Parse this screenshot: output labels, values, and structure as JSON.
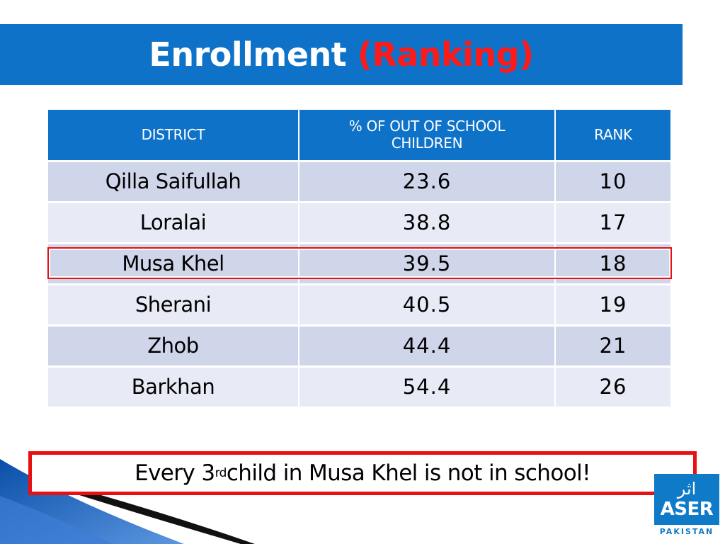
{
  "title": {
    "main": "Enrollment",
    "accent": "(Ranking)"
  },
  "table": {
    "headers": [
      "DISTRICT",
      "% OF OUT OF SCHOOL CHILDREN",
      "RANK"
    ],
    "rows": [
      {
        "district": "Qilla Saifullah",
        "percent": "23.6",
        "rank": "10"
      },
      {
        "district": "Loralai",
        "percent": "38.8",
        "rank": "17"
      },
      {
        "district": "Musa Khel",
        "percent": "39.5",
        "rank": "18"
      },
      {
        "district": "Sherani",
        "percent": "40.5",
        "rank": "19"
      },
      {
        "district": "Zhob",
        "percent": "44.4",
        "rank": "21"
      },
      {
        "district": "Barkhan",
        "percent": "54.4",
        "rank": "26"
      }
    ],
    "highlighted_district": "Musa Khel"
  },
  "callout": {
    "before": "Every 3",
    "sup": "rd",
    "after": " child in Musa Khel is not in school!"
  },
  "logo": {
    "urdu": "اثر",
    "name": "ASER",
    "sub": "PAKISTAN"
  },
  "colors": {
    "header_blue": "#0e72c8",
    "accent_red": "#ff1a1a",
    "row_dark": "#cfd6ea",
    "row_light": "#e8ebf5"
  }
}
